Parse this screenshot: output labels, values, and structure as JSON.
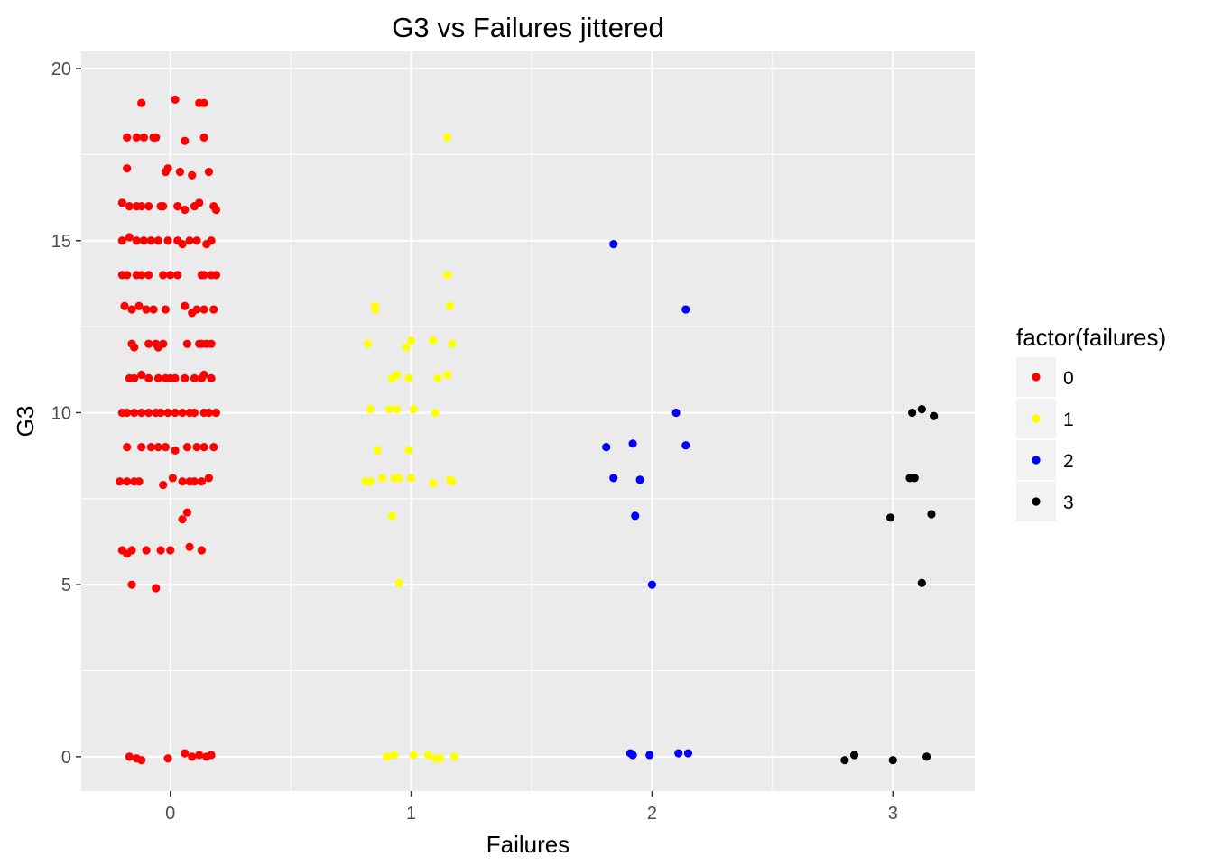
{
  "chart_data": {
    "type": "scatter",
    "title": "G3 vs Failures jittered",
    "xlabel": "Failures",
    "ylabel": "G3",
    "xlim": [
      -0.37,
      3.34
    ],
    "ylim": [
      -1.0,
      20.5
    ],
    "xticks": [
      "0",
      "1",
      "2",
      "3"
    ],
    "yticks": [
      "0",
      "5",
      "10",
      "15",
      "20"
    ],
    "grid": true,
    "background": "#ebebeb",
    "legend": {
      "title": "factor(failures)",
      "position": "right",
      "entries": [
        "0",
        "1",
        "2",
        "3"
      ]
    },
    "series": [
      {
        "name": "0",
        "color": "#ff0000",
        "points": [
          [
            -0.12,
            19.0
          ],
          [
            0.02,
            19.1
          ],
          [
            0.12,
            19.0
          ],
          [
            0.14,
            19.0
          ],
          [
            -0.18,
            18.0
          ],
          [
            -0.14,
            18.0
          ],
          [
            -0.11,
            18.0
          ],
          [
            -0.07,
            18.0
          ],
          [
            -0.06,
            18.0
          ],
          [
            0.06,
            17.9
          ],
          [
            0.14,
            18.0
          ],
          [
            -0.18,
            17.1
          ],
          [
            -0.02,
            17.0
          ],
          [
            -0.01,
            17.1
          ],
          [
            0.04,
            17.0
          ],
          [
            0.09,
            16.9
          ],
          [
            0.16,
            17.0
          ],
          [
            -0.2,
            16.1
          ],
          [
            -0.17,
            16.0
          ],
          [
            -0.14,
            16.0
          ],
          [
            -0.12,
            16.0
          ],
          [
            -0.09,
            16.0
          ],
          [
            -0.04,
            16.0
          ],
          [
            -0.03,
            16.0
          ],
          [
            0.03,
            16.0
          ],
          [
            0.06,
            15.9
          ],
          [
            0.1,
            16.0
          ],
          [
            0.12,
            16.1
          ],
          [
            0.18,
            16.0
          ],
          [
            0.19,
            15.9
          ],
          [
            -0.2,
            15.0
          ],
          [
            -0.17,
            15.1
          ],
          [
            -0.14,
            15.0
          ],
          [
            -0.11,
            15.0
          ],
          [
            -0.08,
            15.0
          ],
          [
            -0.05,
            15.0
          ],
          [
            -0.01,
            15.0
          ],
          [
            0.03,
            15.0
          ],
          [
            0.05,
            14.9
          ],
          [
            0.08,
            15.0
          ],
          [
            0.11,
            15.0
          ],
          [
            0.15,
            14.9
          ],
          [
            0.17,
            15.0
          ],
          [
            -0.2,
            14.0
          ],
          [
            -0.18,
            14.0
          ],
          [
            -0.14,
            14.0
          ],
          [
            -0.12,
            14.0
          ],
          [
            -0.09,
            14.0
          ],
          [
            -0.03,
            14.0
          ],
          [
            0.0,
            14.0
          ],
          [
            0.03,
            14.0
          ],
          [
            0.13,
            14.0
          ],
          [
            0.14,
            14.0
          ],
          [
            0.17,
            14.0
          ],
          [
            0.19,
            14.0
          ],
          [
            -0.19,
            13.1
          ],
          [
            -0.16,
            13.0
          ],
          [
            -0.13,
            13.1
          ],
          [
            -0.1,
            13.0
          ],
          [
            -0.07,
            13.0
          ],
          [
            -0.02,
            13.0
          ],
          [
            0.06,
            13.1
          ],
          [
            0.09,
            12.9
          ],
          [
            0.11,
            13.0
          ],
          [
            0.14,
            13.0
          ],
          [
            0.18,
            13.0
          ],
          [
            -0.16,
            12.0
          ],
          [
            -0.15,
            11.9
          ],
          [
            -0.09,
            12.0
          ],
          [
            -0.06,
            12.0
          ],
          [
            -0.05,
            11.9
          ],
          [
            -0.03,
            12.0
          ],
          [
            0.07,
            12.0
          ],
          [
            0.12,
            12.0
          ],
          [
            0.13,
            12.0
          ],
          [
            0.15,
            12.0
          ],
          [
            0.17,
            12.0
          ],
          [
            -0.17,
            11.0
          ],
          [
            -0.15,
            11.0
          ],
          [
            -0.12,
            11.1
          ],
          [
            -0.09,
            11.0
          ],
          [
            -0.05,
            11.0
          ],
          [
            -0.02,
            11.0
          ],
          [
            0.0,
            11.0
          ],
          [
            0.02,
            11.0
          ],
          [
            0.06,
            11.0
          ],
          [
            0.1,
            11.0
          ],
          [
            0.13,
            11.0
          ],
          [
            0.14,
            11.1
          ],
          [
            0.17,
            11.0
          ],
          [
            -0.2,
            10.0
          ],
          [
            -0.18,
            10.0
          ],
          [
            -0.15,
            10.0
          ],
          [
            -0.12,
            10.0
          ],
          [
            -0.09,
            10.0
          ],
          [
            -0.06,
            10.0
          ],
          [
            -0.04,
            10.0
          ],
          [
            -0.01,
            10.0
          ],
          [
            0.02,
            10.0
          ],
          [
            0.05,
            10.0
          ],
          [
            0.08,
            10.0
          ],
          [
            0.1,
            10.0
          ],
          [
            0.14,
            10.0
          ],
          [
            0.16,
            10.0
          ],
          [
            0.19,
            10.0
          ],
          [
            -0.18,
            9.0
          ],
          [
            -0.12,
            9.0
          ],
          [
            -0.08,
            9.0
          ],
          [
            -0.05,
            9.0
          ],
          [
            -0.02,
            9.0
          ],
          [
            0.02,
            8.9
          ],
          [
            0.07,
            9.0
          ],
          [
            0.11,
            9.0
          ],
          [
            0.14,
            9.0
          ],
          [
            0.18,
            9.0
          ],
          [
            -0.21,
            8.0
          ],
          [
            -0.18,
            8.0
          ],
          [
            -0.15,
            8.0
          ],
          [
            -0.13,
            8.0
          ],
          [
            -0.03,
            7.9
          ],
          [
            0.01,
            8.1
          ],
          [
            0.05,
            8.0
          ],
          [
            0.08,
            8.0
          ],
          [
            0.1,
            8.0
          ],
          [
            0.13,
            8.0
          ],
          [
            0.16,
            8.1
          ],
          [
            0.05,
            6.9
          ],
          [
            0.07,
            7.1
          ],
          [
            -0.2,
            6.0
          ],
          [
            -0.18,
            5.9
          ],
          [
            -0.16,
            6.0
          ],
          [
            -0.1,
            6.0
          ],
          [
            -0.04,
            6.0
          ],
          [
            0.0,
            6.0
          ],
          [
            0.08,
            6.1
          ],
          [
            0.13,
            6.0
          ],
          [
            -0.16,
            5.0
          ],
          [
            -0.06,
            4.9
          ],
          [
            -0.17,
            0.0
          ],
          [
            -0.14,
            -0.05
          ],
          [
            -0.12,
            -0.1
          ],
          [
            -0.01,
            -0.05
          ],
          [
            0.06,
            0.1
          ],
          [
            0.09,
            0.0
          ],
          [
            0.12,
            0.05
          ],
          [
            0.15,
            0.0
          ],
          [
            0.17,
            0.05
          ]
        ]
      },
      {
        "name": "1",
        "color": "#ffff00",
        "points": [
          [
            1.15,
            18.0
          ],
          [
            1.15,
            14.0
          ],
          [
            0.85,
            13.1
          ],
          [
            0.85,
            13.0
          ],
          [
            1.16,
            13.1
          ],
          [
            0.82,
            12.0
          ],
          [
            0.98,
            11.9
          ],
          [
            1.0,
            12.1
          ],
          [
            1.09,
            12.1
          ],
          [
            1.17,
            12.0
          ],
          [
            0.92,
            11.0
          ],
          [
            0.94,
            11.1
          ],
          [
            0.99,
            11.0
          ],
          [
            1.11,
            11.0
          ],
          [
            1.15,
            11.1
          ],
          [
            0.83,
            10.1
          ],
          [
            0.91,
            10.1
          ],
          [
            0.94,
            10.1
          ],
          [
            1.01,
            10.1
          ],
          [
            1.1,
            10.0
          ],
          [
            0.86,
            8.9
          ],
          [
            0.99,
            8.9
          ],
          [
            0.81,
            8.0
          ],
          [
            0.83,
            8.0
          ],
          [
            0.88,
            8.1
          ],
          [
            0.93,
            8.1
          ],
          [
            0.95,
            8.1
          ],
          [
            1.0,
            8.1
          ],
          [
            1.09,
            7.95
          ],
          [
            1.16,
            8.05
          ],
          [
            1.17,
            8.0
          ],
          [
            0.92,
            7.0
          ],
          [
            0.95,
            5.05
          ],
          [
            0.9,
            0.0
          ],
          [
            0.93,
            0.05
          ],
          [
            1.01,
            0.05
          ],
          [
            1.07,
            0.05
          ],
          [
            1.1,
            -0.05
          ],
          [
            1.12,
            -0.05
          ],
          [
            1.18,
            0.0
          ]
        ]
      },
      {
        "name": "2",
        "color": "#0000ff",
        "points": [
          [
            1.84,
            14.9
          ],
          [
            2.14,
            13.0
          ],
          [
            2.1,
            10.0
          ],
          [
            1.81,
            9.0
          ],
          [
            1.92,
            9.1
          ],
          [
            2.14,
            9.05
          ],
          [
            1.84,
            8.1
          ],
          [
            1.95,
            8.05
          ],
          [
            1.93,
            7.0
          ],
          [
            2.0,
            5.0
          ],
          [
            1.91,
            0.1
          ],
          [
            1.92,
            0.05
          ],
          [
            1.99,
            0.05
          ],
          [
            2.11,
            0.1
          ],
          [
            2.15,
            0.1
          ]
        ]
      },
      {
        "name": "3",
        "color": "#000000",
        "points": [
          [
            3.08,
            10.0
          ],
          [
            3.12,
            10.1
          ],
          [
            3.17,
            9.9
          ],
          [
            3.07,
            8.1
          ],
          [
            3.09,
            8.1
          ],
          [
            2.99,
            6.95
          ],
          [
            3.16,
            7.05
          ],
          [
            3.12,
            5.05
          ],
          [
            2.8,
            -0.1
          ],
          [
            2.84,
            0.05
          ],
          [
            3.0,
            -0.1
          ],
          [
            3.14,
            0.0
          ]
        ]
      }
    ]
  }
}
